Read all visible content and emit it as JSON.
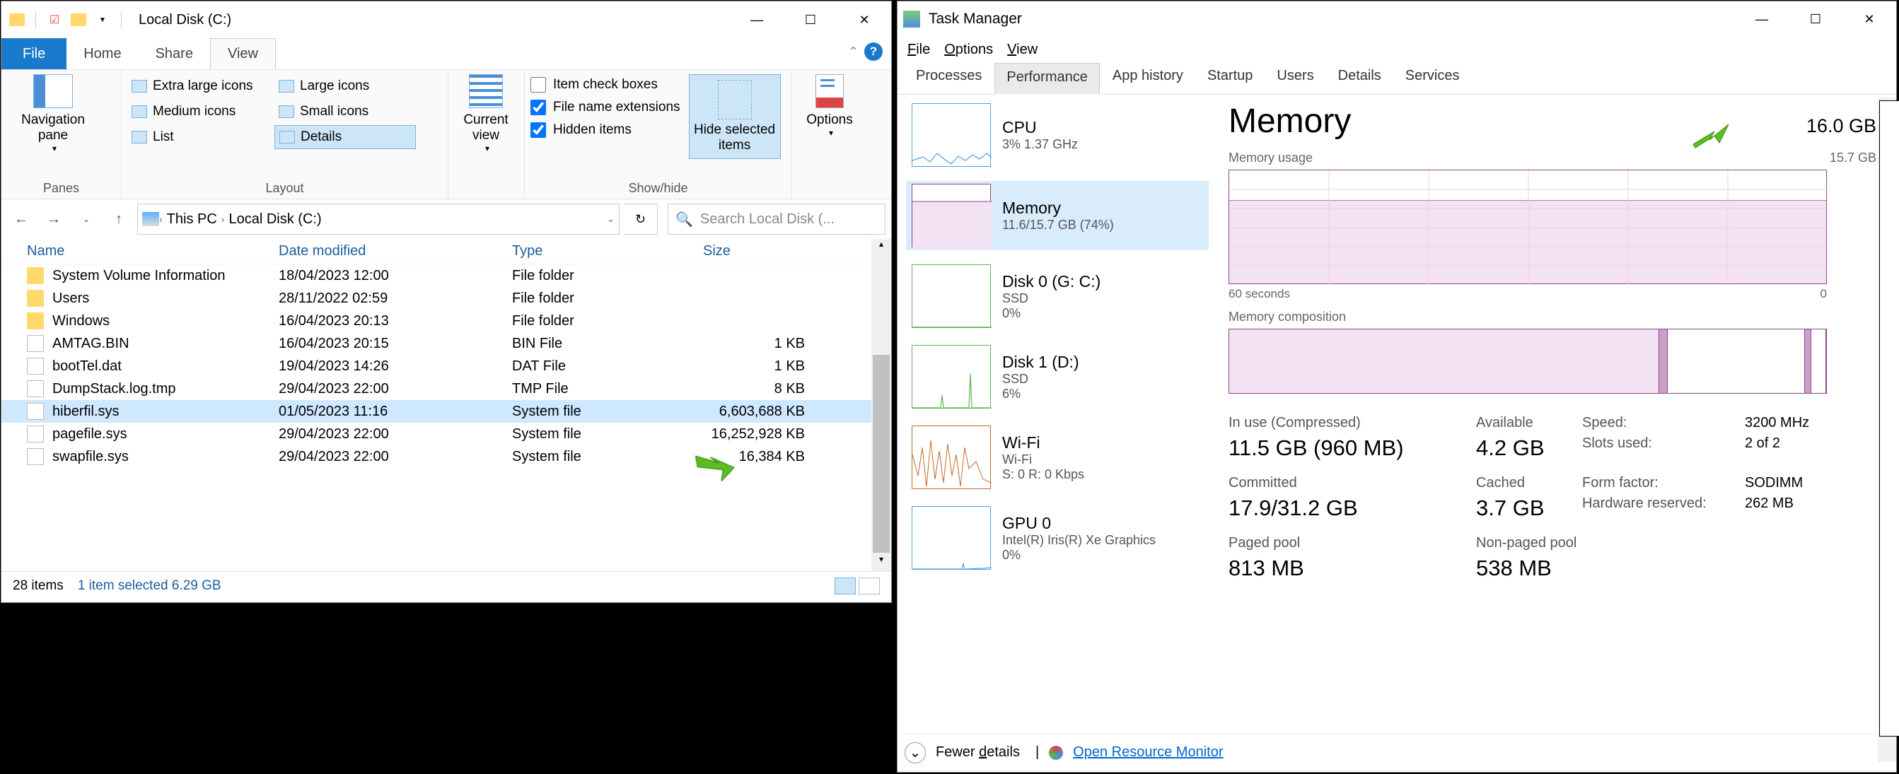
{
  "explorer": {
    "title": "Local Disk (C:)",
    "tabs": {
      "file": "File",
      "home": "Home",
      "share": "Share",
      "view": "View"
    },
    "ribbon": {
      "panes": {
        "navpane": "Navigation\npane",
        "label": "Panes"
      },
      "layout": {
        "items": [
          "Extra large icons",
          "Large icons",
          "Medium icons",
          "Small icons",
          "List",
          "Details"
        ],
        "selected": "Details",
        "label": "Layout"
      },
      "curview": "Current\nview",
      "checks": {
        "item": {
          "label": "Item check boxes",
          "checked": false
        },
        "ext": {
          "label": "File name extensions",
          "checked": true
        },
        "hidden": {
          "label": "Hidden items",
          "checked": true
        }
      },
      "hide": "Hide selected\nitems",
      "options": "Options",
      "showhide_label": "Show/hide"
    },
    "breadcrumb": [
      "This PC",
      "Local Disk (C:)"
    ],
    "search_placeholder": "Search Local Disk (...",
    "columns": {
      "name": "Name",
      "date": "Date modified",
      "type": "Type",
      "size": "Size"
    },
    "files": [
      {
        "icon": "folder",
        "name": "System Volume Information",
        "date": "18/04/2023 12:00",
        "type": "File folder",
        "size": ""
      },
      {
        "icon": "folder",
        "name": "Users",
        "date": "28/11/2022 02:59",
        "type": "File folder",
        "size": ""
      },
      {
        "icon": "folder",
        "name": "Windows",
        "date": "16/04/2023 20:13",
        "type": "File folder",
        "size": ""
      },
      {
        "icon": "file",
        "name": "AMTAG.BIN",
        "date": "16/04/2023 20:15",
        "type": "BIN File",
        "size": "1 KB"
      },
      {
        "icon": "file",
        "name": "bootTel.dat",
        "date": "19/04/2023 14:26",
        "type": "DAT File",
        "size": "1 KB"
      },
      {
        "icon": "file",
        "name": "DumpStack.log.tmp",
        "date": "29/04/2023 22:00",
        "type": "TMP File",
        "size": "8 KB"
      },
      {
        "icon": "file",
        "name": "hiberfil.sys",
        "date": "01/05/2023 11:16",
        "type": "System file",
        "size": "6,603,688 KB",
        "selected": true
      },
      {
        "icon": "file",
        "name": "pagefile.sys",
        "date": "29/04/2023 22:00",
        "type": "System file",
        "size": "16,252,928 KB"
      },
      {
        "icon": "file",
        "name": "swapfile.sys",
        "date": "29/04/2023 22:00",
        "type": "System file",
        "size": "16,384 KB"
      }
    ],
    "status": {
      "items": "28 items",
      "selected": "1 item selected  6.29 GB"
    }
  },
  "tm": {
    "title": "Task Manager",
    "menu": [
      "File",
      "Options",
      "View"
    ],
    "tabs": [
      "Processes",
      "Performance",
      "App history",
      "Startup",
      "Users",
      "Details",
      "Services"
    ],
    "active_tab": "Performance",
    "cards": [
      {
        "key": "cpu",
        "title": "CPU",
        "sub1": "3%  1.37 GHz",
        "color": "#4aa0e0"
      },
      {
        "key": "memory",
        "title": "Memory",
        "sub1": "11.6/15.7 GB (74%)",
        "color": "#8b4789",
        "selected": true
      },
      {
        "key": "disk0",
        "title": "Disk 0 (G: C:)",
        "sub1": "SSD",
        "sub2": "0%",
        "color": "#5ab452"
      },
      {
        "key": "disk1",
        "title": "Disk 1 (D:)",
        "sub1": "SSD",
        "sub2": "6%",
        "color": "#5ab452"
      },
      {
        "key": "wifi",
        "title": "Wi-Fi",
        "sub1": "Wi-Fi",
        "sub2": "S: 0  R: 0 Kbps",
        "color": "#c06a2d"
      },
      {
        "key": "gpu",
        "title": "GPU 0",
        "sub1": "Intel(R) Iris(R) Xe Graphics",
        "sub2": "0%",
        "color": "#4aa0e0"
      }
    ],
    "main": {
      "heading": "Memory",
      "total": "16.0 GB",
      "usage_label": "Memory usage",
      "usage_max": "15.7 GB",
      "usage_pct": 0.74,
      "axis_left": "60 seconds",
      "axis_right": "0",
      "comp_label": "Memory composition",
      "comp_segments": [
        {
          "w": 0.72,
          "bg": "#f3e2f3",
          "border": "#8b4789"
        },
        {
          "w": 0.015,
          "bg": "#c8a0c8",
          "border": "#8b4789"
        },
        {
          "w": 0.23,
          "bg": "#ffffff",
          "border": "#8b4789"
        },
        {
          "w": 0.01,
          "bg": "#c8a0c8",
          "border": "#8b4789"
        },
        {
          "w": 0.025,
          "bg": "#ffffff",
          "border": "#8b4789"
        }
      ],
      "stats": {
        "inuse_lab": "In use (Compressed)",
        "inuse_val": "11.5 GB (960 MB)",
        "avail_lab": "Available",
        "avail_val": "4.2 GB",
        "committed_lab": "Committed",
        "committed_val": "17.9/31.2 GB",
        "cached_lab": "Cached",
        "cached_val": "3.7 GB",
        "paged_lab": "Paged pool",
        "paged_val": "813 MB",
        "nonpaged_lab": "Non-paged pool",
        "nonpaged_val": "538 MB",
        "speed_lab": "Speed:",
        "speed_val": "3200 MHz",
        "slots_lab": "Slots used:",
        "slots_val": "2 of 2",
        "ff_lab": "Form factor:",
        "ff_val": "SODIMM",
        "hw_lab": "Hardware reserved:",
        "hw_val": "262 MB"
      }
    },
    "footer": {
      "fewer": "Fewer details",
      "orm": "Open Resource Monitor"
    }
  },
  "colors": {
    "select_blue": "#cde8ff",
    "ribbon_sel": "#cde6f7",
    "heading_blue": "#1a5ea0",
    "tm_purple": "#8b4789",
    "tm_sel": "#d9ecfb"
  }
}
